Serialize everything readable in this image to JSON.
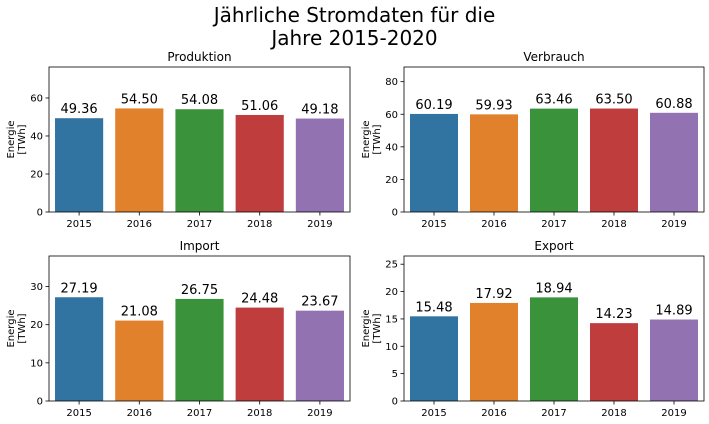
{
  "figure": {
    "title_line1": "Jährliche Stromdaten für die",
    "title_line2": "Jahre 2015-2020"
  },
  "colors": [
    "#3274a1",
    "#e1812c",
    "#3a923a",
    "#c03d3e",
    "#9372b2"
  ],
  "chart_data": [
    {
      "type": "bar",
      "title": "Produktion",
      "categories": [
        "2015",
        "2016",
        "2017",
        "2018",
        "2019"
      ],
      "values": [
        49.36,
        54.5,
        54.08,
        51.06,
        49.18
      ],
      "value_labels": [
        "49.36",
        "54.50",
        "54.08",
        "51.06",
        "49.18"
      ],
      "ylabel_line1": "Energie",
      "ylabel_line2": "[TWh]",
      "ylim": [
        0,
        76.3
      ],
      "yticks": [
        0,
        20,
        40,
        60
      ],
      "grid": false,
      "legend": "none"
    },
    {
      "type": "bar",
      "title": "Verbrauch",
      "categories": [
        "2015",
        "2016",
        "2017",
        "2018",
        "2019"
      ],
      "values": [
        60.19,
        59.93,
        63.46,
        63.5,
        60.88
      ],
      "value_labels": [
        "60.19",
        "59.93",
        "63.46",
        "63.50",
        "60.88"
      ],
      "ylabel_line1": "Energie",
      "ylabel_line2": "[TWh]",
      "ylim": [
        0,
        89
      ],
      "yticks": [
        0,
        20,
        40,
        60,
        80
      ],
      "grid": false,
      "legend": "none"
    },
    {
      "type": "bar",
      "title": "Import",
      "categories": [
        "2015",
        "2016",
        "2017",
        "2018",
        "2019"
      ],
      "values": [
        27.19,
        21.08,
        26.75,
        24.48,
        23.67
      ],
      "value_labels": [
        "27.19",
        "21.08",
        "26.75",
        "24.48",
        "23.67"
      ],
      "ylabel_line1": "Energie",
      "ylabel_line2": "[TWh]",
      "ylim": [
        0,
        38
      ],
      "yticks": [
        0,
        10,
        20,
        30
      ],
      "grid": false,
      "legend": "none"
    },
    {
      "type": "bar",
      "title": "Export",
      "categories": [
        "2015",
        "2016",
        "2017",
        "2018",
        "2019"
      ],
      "values": [
        15.48,
        17.92,
        18.94,
        14.23,
        14.89
      ],
      "value_labels": [
        "15.48",
        "17.92",
        "18.94",
        "14.23",
        "14.89"
      ],
      "ylabel_line1": "Energie",
      "ylabel_line2": "[TWh]",
      "ylim": [
        0,
        26.5
      ],
      "yticks": [
        0,
        5,
        10,
        15,
        20,
        25
      ],
      "grid": false,
      "legend": "none"
    }
  ]
}
